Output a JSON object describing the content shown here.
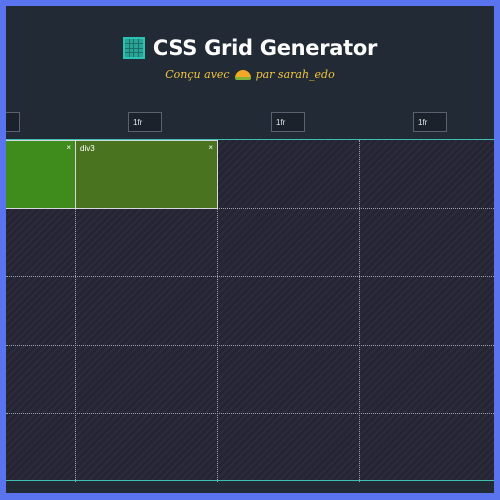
{
  "app": {
    "title": "CSS Grid Generator",
    "subtitle_prefix": "Conçu avec",
    "subtitle_suffix": "par sarah_edo",
    "icon": "grid-icon",
    "heart_icon": "taco-icon"
  },
  "columns": {
    "inputs": [
      "1fr",
      "1fr",
      "1fr"
    ]
  },
  "grid_items": [
    {
      "label": "",
      "close": "×",
      "color": "#3f8c1c"
    },
    {
      "label": "div3",
      "close": "×",
      "color": "#4a7320"
    }
  ],
  "colors": {
    "background": "#222a35",
    "border_accent": "#3ebfb2",
    "title": "#ffffff",
    "subtitle": "#f3c53f",
    "outer": "#5a73ee"
  }
}
